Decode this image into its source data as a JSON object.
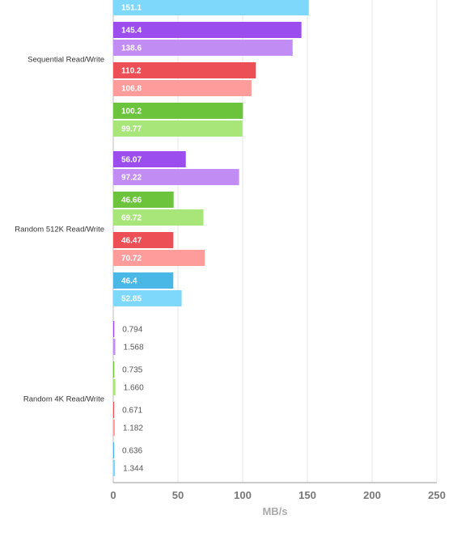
{
  "chart_data": {
    "type": "bar",
    "orientation": "horizontal",
    "xlabel": "MB/s",
    "xlim": [
      0,
      250
    ],
    "xticks": [
      0,
      50,
      100,
      150,
      200,
      250
    ],
    "grid": "vertical",
    "groups": [
      {
        "label": "Sequential Read/Write",
        "pairs": [
          {
            "color": "blue",
            "values": [
              null,
              151.1
            ],
            "labels": [
              "",
              "151.1"
            ]
          },
          {
            "color": "purple",
            "values": [
              145.4,
              138.6
            ],
            "labels": [
              "145.4",
              "138.6"
            ]
          },
          {
            "color": "red",
            "values": [
              110.2,
              106.8
            ],
            "labels": [
              "110.2",
              "106.8"
            ]
          },
          {
            "color": "green",
            "values": [
              100.2,
              99.77
            ],
            "labels": [
              "100.2",
              "99.77"
            ]
          }
        ]
      },
      {
        "label": "Random 512K Read/Write",
        "pairs": [
          {
            "color": "purple",
            "values": [
              56.07,
              97.22
            ],
            "labels": [
              "56.07",
              "97.22"
            ]
          },
          {
            "color": "green",
            "values": [
              46.66,
              69.72
            ],
            "labels": [
              "46.66",
              "69.72"
            ]
          },
          {
            "color": "red",
            "values": [
              46.47,
              70.72
            ],
            "labels": [
              "46.47",
              "70.72"
            ]
          },
          {
            "color": "blue",
            "values": [
              46.4,
              52.85
            ],
            "labels": [
              "46.4",
              "52.85"
            ]
          }
        ]
      },
      {
        "label": "Random 4K Read/Write",
        "pairs": [
          {
            "color": "purple",
            "values": [
              0.794,
              1.568
            ],
            "labels": [
              "0.794",
              "1.568"
            ]
          },
          {
            "color": "green",
            "values": [
              0.735,
              1.66
            ],
            "labels": [
              "0.735",
              "1.660"
            ]
          },
          {
            "color": "red",
            "values": [
              0.671,
              1.182
            ],
            "labels": [
              "0.671",
              "1.182"
            ]
          },
          {
            "color": "blue",
            "values": [
              0.636,
              1.344
            ],
            "labels": [
              "0.636",
              "1.344"
            ]
          }
        ]
      }
    ],
    "colors": {
      "purple": [
        "#9b4ded",
        "#c28cf5"
      ],
      "red": [
        "#ec4f56",
        "#fe9b9b"
      ],
      "green": [
        "#6cc43d",
        "#a9e67a"
      ],
      "blue": [
        "#4ab8e6",
        "#7dd8fc"
      ]
    }
  }
}
